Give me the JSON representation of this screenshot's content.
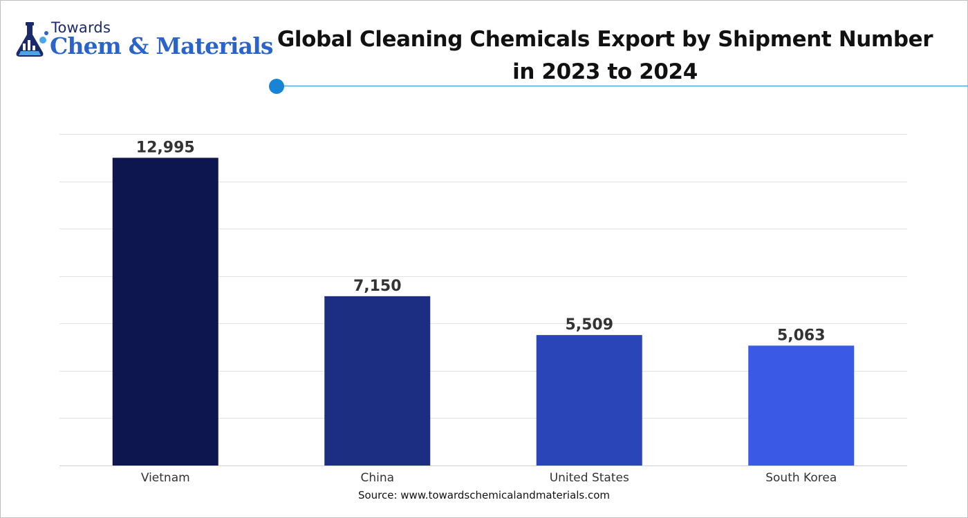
{
  "brand": {
    "line1": "Towards",
    "line2": "Chem & Materials",
    "colors": {
      "dark": "#1b2a6b",
      "accent": "#2a63c9",
      "light": "#4aa6e8"
    }
  },
  "chart_data": {
    "type": "bar",
    "title": "Global Cleaning Chemicals Export by Shipment Number in 2023 to 2024",
    "title_lines": [
      "Global Cleaning Chemicals Export by Shipment Number",
      "in 2023 to 2024"
    ],
    "categories": [
      "Vietnam",
      "China",
      "United States",
      "South Korea"
    ],
    "values": [
      12995,
      7150,
      5509,
      5063
    ],
    "value_labels": [
      "12,995",
      "7,150",
      "5,509",
      "5,063"
    ],
    "bar_colors": [
      "#0e1650",
      "#1b2e82",
      "#2a45b8",
      "#3a5ae6"
    ],
    "xlabel": "",
    "ylabel": "",
    "ylim": [
      0,
      14000
    ],
    "grid": true,
    "legend": "none",
    "source": "Source: www.towardschemicalandmaterials.com"
  }
}
